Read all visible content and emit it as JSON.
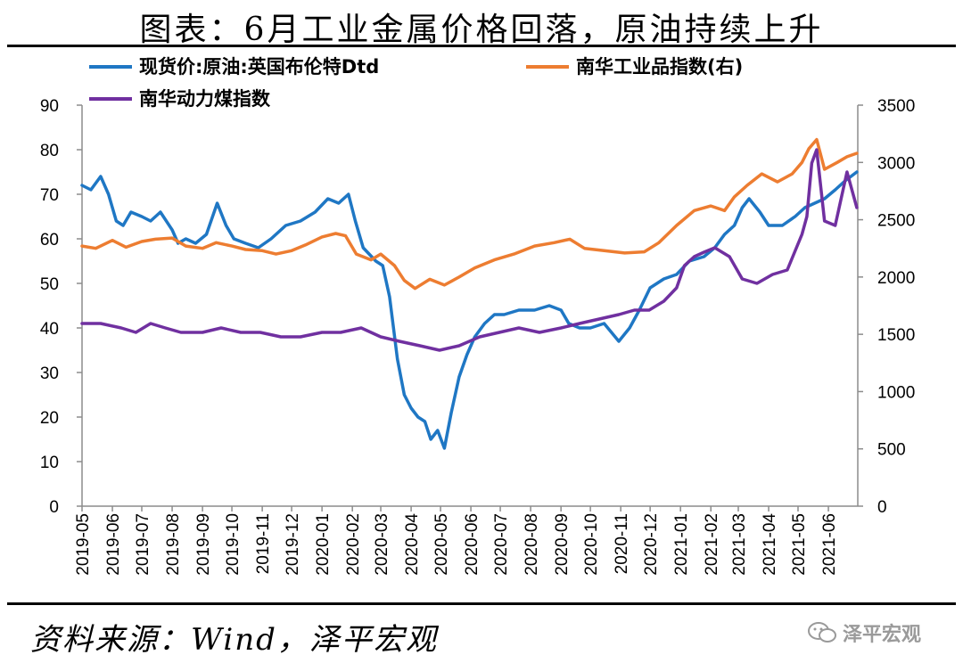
{
  "title": "图表：6月工业金属价格回落，原油持续上升",
  "source": "资料来源：Wind，泽平宏观",
  "watermark": "泽平宏观",
  "chart_data": {
    "type": "line",
    "x_ticks": [
      "2019-05",
      "2019-06",
      "2019-07",
      "2019-08",
      "2019-09",
      "2019-10",
      "2019-11",
      "2019-12",
      "2020-01",
      "2020-02",
      "2020-03",
      "2020-04",
      "2020-05",
      "2020-06",
      "2020-07",
      "2020-08",
      "2020-09",
      "2020-10",
      "2020-11",
      "2020-12",
      "2021-01",
      "2021-02",
      "2021-03",
      "2021-04",
      "2021-05",
      "2021-06"
    ],
    "y_left": {
      "range": [
        0,
        90
      ],
      "ticks": [
        "0",
        "10",
        "20",
        "30",
        "40",
        "50",
        "60",
        "70",
        "80",
        "90"
      ]
    },
    "y_right": {
      "range": [
        0,
        3500
      ],
      "ticks": [
        "0",
        "500",
        "1000",
        "1500",
        "2000",
        "2500",
        "3000",
        "3500"
      ]
    },
    "legend": {
      "placement": "top"
    },
    "grid": false,
    "series": [
      {
        "name": "现货价:原油:英国布伦特Dtd",
        "color": "#1F77C4",
        "axis": "left",
        "x": [
          "2019-05-01",
          "2019-05-10",
          "2019-05-20",
          "2019-05-28",
          "2019-06-05",
          "2019-06-12",
          "2019-06-20",
          "2019-07-01",
          "2019-07-10",
          "2019-07-20",
          "2019-08-01",
          "2019-08-07",
          "2019-08-15",
          "2019-08-25",
          "2019-09-05",
          "2019-09-16",
          "2019-09-25",
          "2019-10-03",
          "2019-10-15",
          "2019-10-28",
          "2019-11-10",
          "2019-11-25",
          "2019-12-10",
          "2019-12-25",
          "2020-01-07",
          "2020-01-18",
          "2020-01-28",
          "2020-02-04",
          "2020-02-12",
          "2020-02-25",
          "2020-03-03",
          "2020-03-10",
          "2020-03-18",
          "2020-03-25",
          "2020-04-01",
          "2020-04-08",
          "2020-04-15",
          "2020-04-21",
          "2020-04-28",
          "2020-05-05",
          "2020-05-12",
          "2020-05-20",
          "2020-05-28",
          "2020-06-05",
          "2020-06-15",
          "2020-06-25",
          "2020-07-05",
          "2020-07-20",
          "2020-08-05",
          "2020-08-20",
          "2020-09-01",
          "2020-09-09",
          "2020-09-20",
          "2020-10-01",
          "2020-10-15",
          "2020-10-30",
          "2020-11-10",
          "2020-11-20",
          "2020-12-01",
          "2020-12-15",
          "2020-12-28",
          "2021-01-10",
          "2021-01-25",
          "2021-02-05",
          "2021-02-15",
          "2021-02-25",
          "2021-03-05",
          "2021-03-12",
          "2021-03-23",
          "2021-04-01",
          "2021-04-15",
          "2021-04-28",
          "2021-05-08",
          "2021-05-18",
          "2021-05-28",
          "2021-06-08",
          "2021-06-18",
          "2021-06-30"
        ],
        "values": [
          72,
          71,
          74,
          70,
          64,
          63,
          66,
          65,
          64,
          66,
          62,
          59,
          60,
          59,
          61,
          68,
          63,
          60,
          59,
          58,
          60,
          63,
          64,
          66,
          69,
          68,
          70,
          64,
          58,
          55,
          54,
          47,
          33,
          25,
          22,
          20,
          19,
          15,
          17,
          13,
          21,
          29,
          34,
          38,
          41,
          43,
          43,
          44,
          44,
          45,
          44,
          41,
          40,
          40,
          41,
          37,
          40,
          44,
          49,
          51,
          52,
          55,
          56,
          58,
          61,
          63,
          67,
          69,
          66,
          63,
          63,
          65,
          67,
          68,
          69,
          71,
          73,
          75
        ]
      },
      {
        "name": "南华工业品指数(右)",
        "color": "#ED7D31",
        "axis": "right",
        "x": [
          "2019-05-01",
          "2019-05-15",
          "2019-06-01",
          "2019-06-15",
          "2019-07-01",
          "2019-07-15",
          "2019-08-01",
          "2019-08-15",
          "2019-09-01",
          "2019-09-15",
          "2019-10-01",
          "2019-10-15",
          "2019-11-01",
          "2019-11-15",
          "2019-12-01",
          "2019-12-15",
          "2020-01-01",
          "2020-01-15",
          "2020-01-25",
          "2020-02-05",
          "2020-02-20",
          "2020-03-01",
          "2020-03-15",
          "2020-03-25",
          "2020-04-05",
          "2020-04-20",
          "2020-05-05",
          "2020-05-20",
          "2020-06-05",
          "2020-06-25",
          "2020-07-15",
          "2020-08-05",
          "2020-08-25",
          "2020-09-10",
          "2020-09-25",
          "2020-10-15",
          "2020-11-05",
          "2020-11-25",
          "2020-12-10",
          "2020-12-28",
          "2021-01-15",
          "2021-02-01",
          "2021-02-15",
          "2021-02-25",
          "2021-03-10",
          "2021-03-25",
          "2021-04-10",
          "2021-04-25",
          "2021-05-05",
          "2021-05-12",
          "2021-05-20",
          "2021-05-28",
          "2021-06-10",
          "2021-06-20",
          "2021-06-30"
        ],
        "values": [
          2270,
          2250,
          2320,
          2260,
          2310,
          2330,
          2340,
          2270,
          2250,
          2300,
          2270,
          2240,
          2230,
          2200,
          2230,
          2280,
          2350,
          2380,
          2360,
          2200,
          2150,
          2200,
          2100,
          1970,
          1900,
          1980,
          1930,
          2000,
          2080,
          2150,
          2200,
          2270,
          2300,
          2330,
          2250,
          2230,
          2210,
          2220,
          2300,
          2450,
          2580,
          2620,
          2580,
          2700,
          2800,
          2900,
          2830,
          2900,
          3000,
          3120,
          3200,
          2940,
          3000,
          3050,
          3080
        ]
      },
      {
        "name": "南华动力煤指数",
        "color": "#7030A0",
        "axis": "left",
        "x": [
          "2019-05-01",
          "2019-05-20",
          "2019-06-10",
          "2019-06-25",
          "2019-07-10",
          "2019-07-25",
          "2019-08-10",
          "2019-09-01",
          "2019-09-20",
          "2019-10-10",
          "2019-10-30",
          "2019-11-20",
          "2019-12-10",
          "2020-01-01",
          "2020-01-20",
          "2020-02-10",
          "2020-03-01",
          "2020-03-20",
          "2020-04-10",
          "2020-04-30",
          "2020-05-20",
          "2020-06-10",
          "2020-06-30",
          "2020-07-20",
          "2020-08-10",
          "2020-09-01",
          "2020-09-20",
          "2020-10-10",
          "2020-10-30",
          "2020-11-15",
          "2020-11-30",
          "2020-12-15",
          "2020-12-28",
          "2021-01-05",
          "2021-01-15",
          "2021-01-25",
          "2021-02-05",
          "2021-02-20",
          "2021-03-05",
          "2021-03-20",
          "2021-04-05",
          "2021-04-20",
          "2021-05-05",
          "2021-05-10",
          "2021-05-15",
          "2021-05-20",
          "2021-05-28",
          "2021-06-08",
          "2021-06-20",
          "2021-06-30"
        ],
        "values": [
          41,
          41,
          40,
          39,
          41,
          40,
          39,
          39,
          40,
          39,
          39,
          38,
          38,
          39,
          39,
          40,
          38,
          37,
          36,
          35,
          36,
          38,
          39,
          40,
          39,
          40,
          41,
          42,
          43,
          44,
          44,
          46,
          49,
          54,
          56,
          57,
          58,
          56,
          51,
          50,
          52,
          53,
          61,
          65,
          77,
          80,
          64,
          63,
          75,
          67
        ]
      }
    ]
  }
}
